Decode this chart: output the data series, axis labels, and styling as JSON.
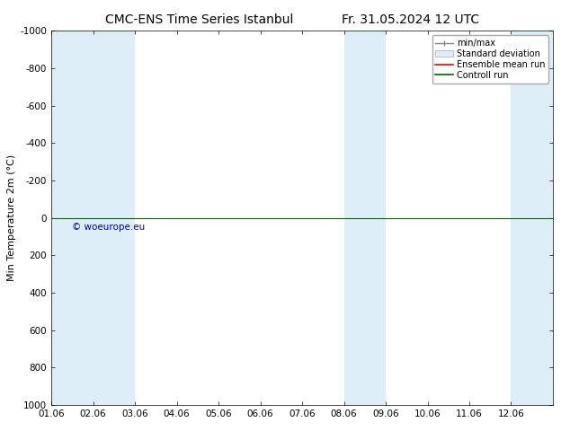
{
  "title_left": "CMC-ENS Time Series Istanbul",
  "title_right": "Fr. 31.05.2024 12 UTC",
  "ylabel": "Min Temperature 2m (°C)",
  "ylim_bottom": 1000,
  "ylim_top": -1000,
  "yticks": [
    -1000,
    -800,
    -600,
    -400,
    -200,
    0,
    200,
    400,
    600,
    800,
    1000
  ],
  "xtick_labels": [
    "01.06",
    "02.06",
    "03.06",
    "04.06",
    "05.06",
    "06.06",
    "07.06",
    "08.06",
    "09.06",
    "10.06",
    "11.06",
    "12.06"
  ],
  "xtick_positions": [
    0,
    1,
    2,
    3,
    4,
    5,
    6,
    7,
    8,
    9,
    10,
    11
  ],
  "xlim": [
    0,
    12
  ],
  "blue_bands": [
    [
      0,
      1
    ],
    [
      1,
      2
    ],
    [
      7,
      8
    ],
    [
      11,
      12
    ]
  ],
  "band_color": "#ddeef8",
  "control_run_y": 0,
  "control_run_color": "#006400",
  "ensemble_mean_color": "#ff0000",
  "watermark": "© woeurope.eu",
  "watermark_color": "#0000aa",
  "legend_entries": [
    "min/max",
    "Standard deviation",
    "Ensemble mean run",
    "Controll run"
  ],
  "background_color": "#ffffff",
  "title_fontsize": 10,
  "tick_fontsize": 7.5,
  "ylabel_fontsize": 8
}
